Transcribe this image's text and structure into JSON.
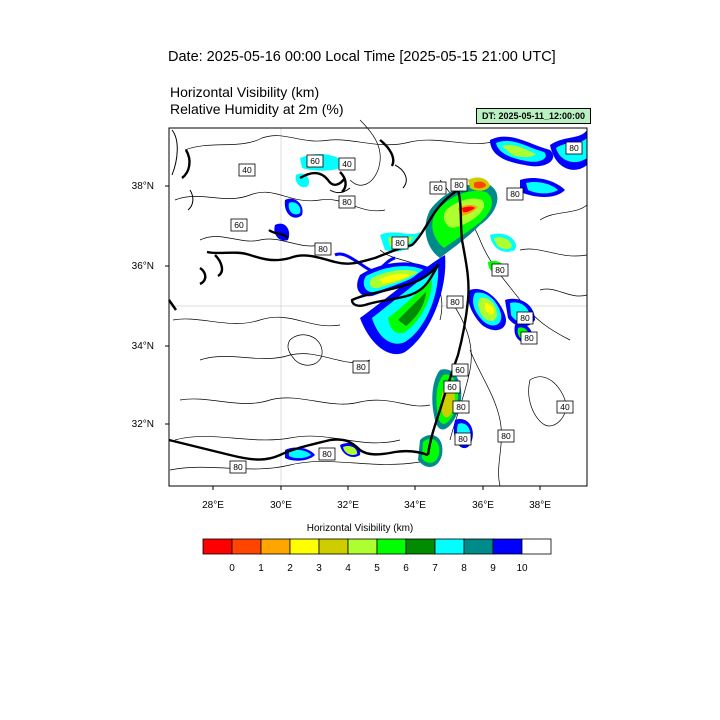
{
  "header": {
    "date_title": "Date: 2025-05-16  00:00 Local Time [2025-05-15  21:00 UTC]",
    "variable_line_1": "Horizontal Visibility   (km)",
    "variable_line_2": "Relative Humidity at 2m   (%)",
    "dt_badge": "DT: 2025-05-11_12:00:00"
  },
  "map": {
    "lat_labels": [
      "38°N",
      "36°N",
      "34°N",
      "32°N"
    ],
    "lon_labels": [
      "28°E",
      "30°E",
      "32°E",
      "34°E",
      "36°E",
      "38°E"
    ],
    "contour_labels": [
      "40",
      "60",
      "40",
      "60",
      "80",
      "80",
      "60",
      "80",
      "80",
      "80",
      "80",
      "80",
      "80",
      "80",
      "80",
      "60",
      "80",
      "60",
      "80",
      "80",
      "80",
      "40",
      "80",
      "80"
    ]
  },
  "legend": {
    "title": "Horizontal Visibility  (km)",
    "colors": [
      "#ff0000",
      "#ff4500",
      "#ffa500",
      "#ffff00",
      "#cdcd00",
      "#adff2f",
      "#00ff00",
      "#008b00",
      "#00ffff",
      "#008b8b",
      "#0000ff",
      "#ffffff"
    ],
    "tick_labels": [
      "0",
      "1",
      "2",
      "3",
      "4",
      "5",
      "6",
      "7",
      "8",
      "9",
      "10"
    ]
  }
}
